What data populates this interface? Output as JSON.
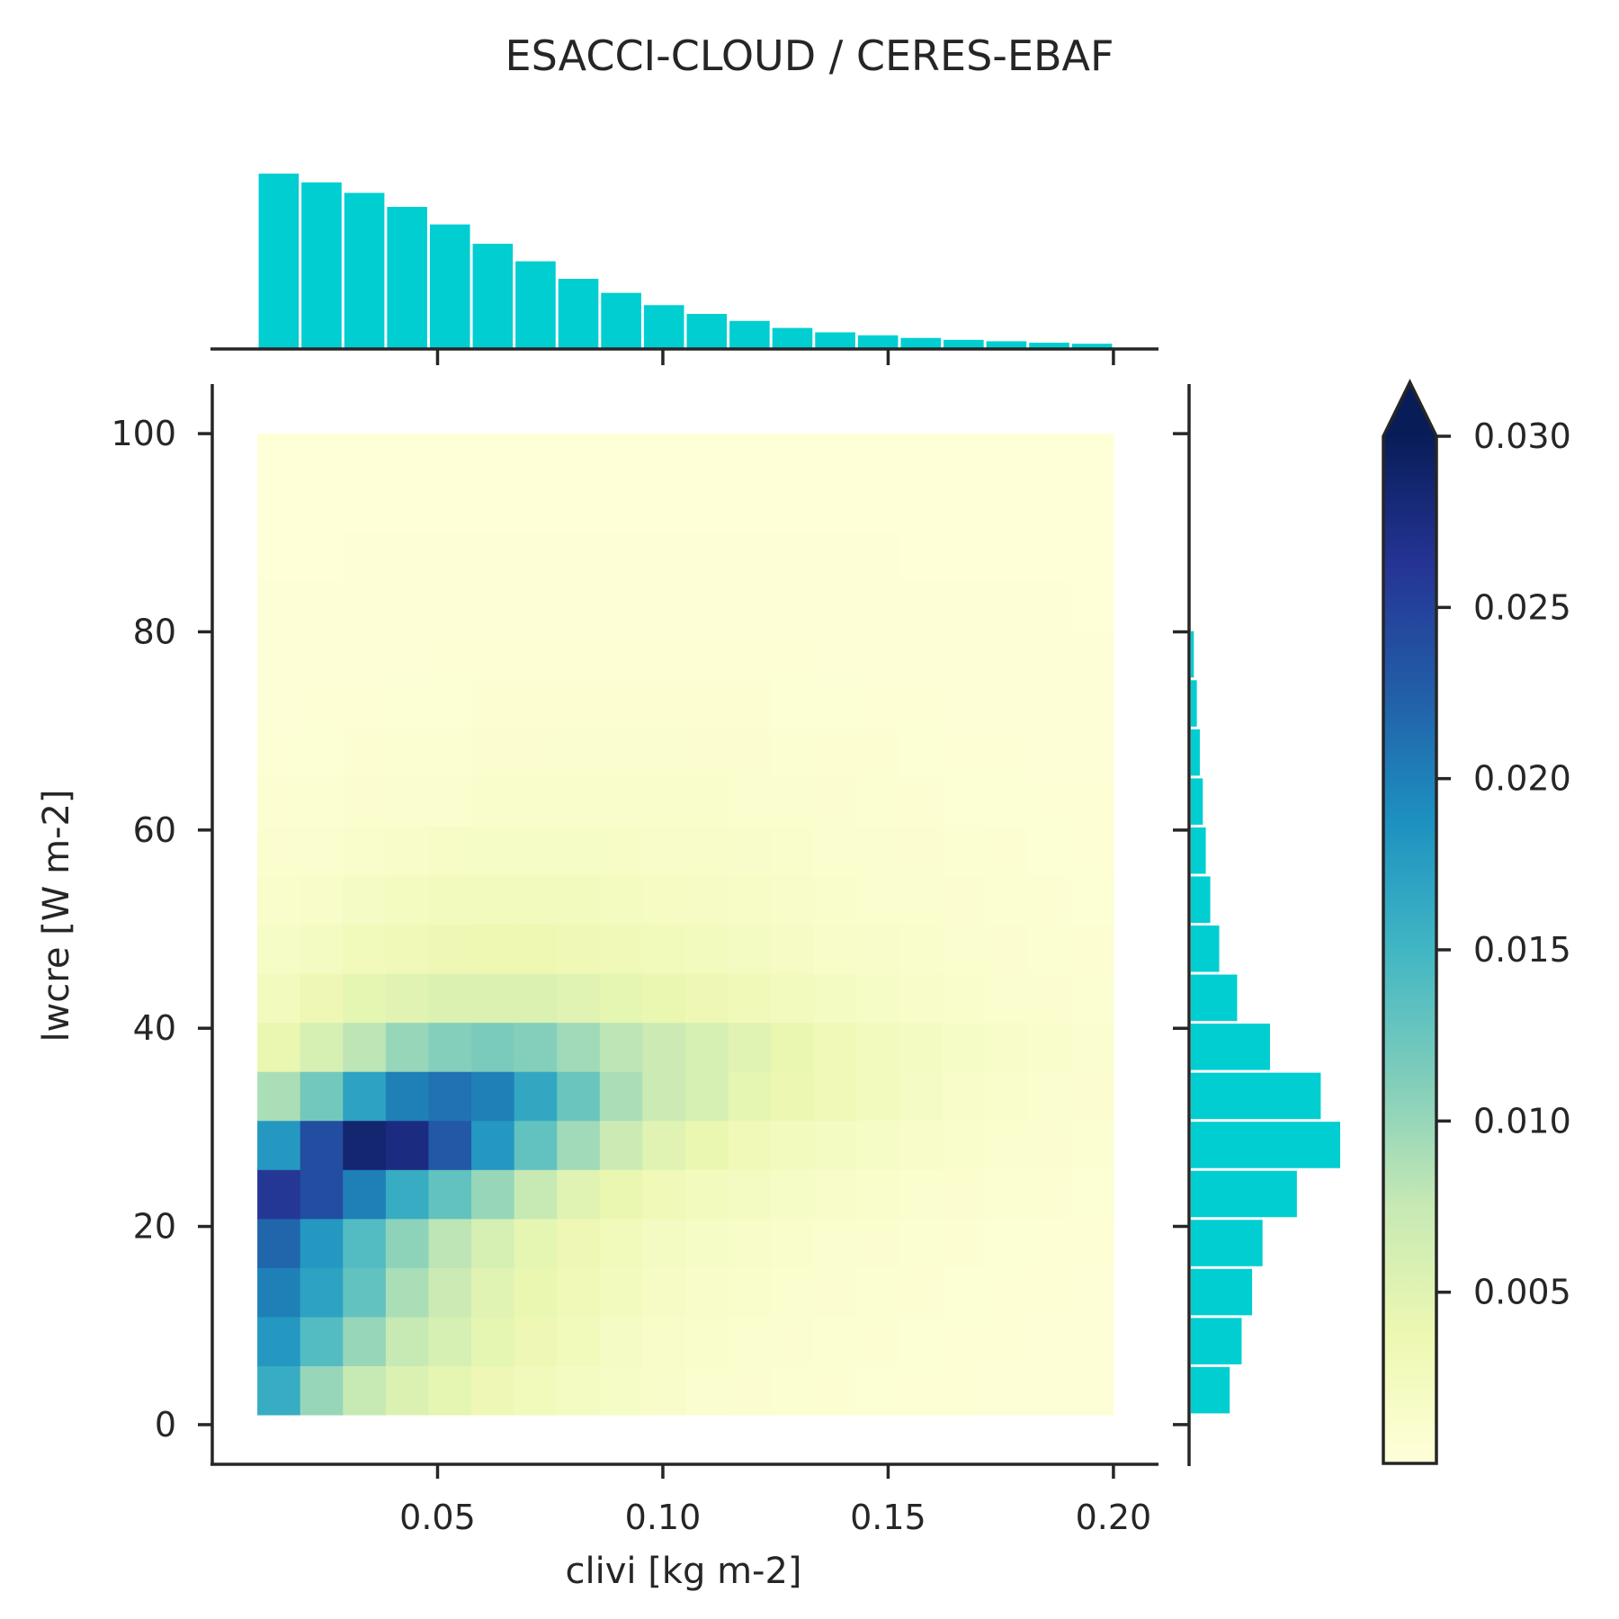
{
  "chart_data": {
    "type": "heatmap",
    "title": "ESACCI-CLOUD / CERES-EBAF",
    "xlabel": "clivi [kg m-2]",
    "ylabel": "lwcre [W m-2]",
    "xlim": [
      0,
      0.21
    ],
    "ylim": [
      -4,
      105
    ],
    "x_bin_edges": [
      0.01,
      0.0195,
      0.029,
      0.0385,
      0.048,
      0.0575,
      0.067,
      0.0765,
      0.086,
      0.0955,
      0.105,
      0.1145,
      0.124,
      0.1335,
      0.143,
      0.1525,
      0.162,
      0.1715,
      0.181,
      0.1905,
      0.2
    ],
    "y_bin_edges": [
      1,
      5.95,
      10.9,
      15.85,
      20.8,
      25.75,
      30.7,
      35.65,
      40.6,
      45.55,
      50.5,
      55.45,
      60.4,
      65.35,
      70.3,
      75.25,
      80.2,
      85.15,
      90.1,
      95.05,
      100
    ],
    "x_ticks": [
      0.05,
      0.1,
      0.15,
      0.2
    ],
    "x_tick_labels": [
      "0.05",
      "0.10",
      "0.15",
      "0.20"
    ],
    "y_ticks": [
      0,
      20,
      40,
      60,
      80,
      100
    ],
    "y_tick_labels": [
      "0",
      "20",
      "40",
      "60",
      "80",
      "100"
    ],
    "density": [
      [
        0.016,
        0.01,
        0.0075,
        0.0055,
        0.0045,
        0.0035,
        0.0028,
        0.0022,
        0.0018,
        0.0014,
        0.0011,
        0.0009,
        0.0008,
        0.0007,
        0.0006,
        0.0005,
        0.0005,
        0.0004,
        0.0004,
        0.0004
      ],
      [
        0.018,
        0.014,
        0.01,
        0.0075,
        0.006,
        0.0045,
        0.0035,
        0.0028,
        0.002,
        0.0015,
        0.0012,
        0.001,
        0.0009,
        0.0008,
        0.0007,
        0.0006,
        0.0005,
        0.0005,
        0.0004,
        0.0004
      ],
      [
        0.02,
        0.017,
        0.013,
        0.009,
        0.007,
        0.005,
        0.004,
        0.0032,
        0.0025,
        0.0019,
        0.0015,
        0.0012,
        0.001,
        0.0009,
        0.0008,
        0.0007,
        0.0006,
        0.0005,
        0.0005,
        0.0004
      ],
      [
        0.022,
        0.018,
        0.014,
        0.0105,
        0.008,
        0.006,
        0.0045,
        0.0035,
        0.0028,
        0.0022,
        0.0018,
        0.0015,
        0.0012,
        0.001,
        0.0009,
        0.0008,
        0.0007,
        0.0006,
        0.0005,
        0.0005
      ],
      [
        0.026,
        0.024,
        0.02,
        0.016,
        0.013,
        0.01,
        0.0075,
        0.005,
        0.004,
        0.0032,
        0.0026,
        0.0022,
        0.0018,
        0.0015,
        0.0013,
        0.0011,
        0.0009,
        0.0008,
        0.0007,
        0.0006
      ],
      [
        0.018,
        0.024,
        0.0285,
        0.0275,
        0.023,
        0.018,
        0.013,
        0.0095,
        0.007,
        0.005,
        0.004,
        0.0032,
        0.0026,
        0.0022,
        0.0018,
        0.0015,
        0.0012,
        0.001,
        0.0009,
        0.0008
      ],
      [
        0.009,
        0.012,
        0.017,
        0.02,
        0.021,
        0.02,
        0.0165,
        0.0125,
        0.009,
        0.007,
        0.006,
        0.0045,
        0.0038,
        0.0032,
        0.0026,
        0.002,
        0.0016,
        0.0013,
        0.0011,
        0.0009
      ],
      [
        0.004,
        0.006,
        0.008,
        0.01,
        0.011,
        0.0115,
        0.011,
        0.0095,
        0.008,
        0.007,
        0.006,
        0.005,
        0.004,
        0.0032,
        0.0026,
        0.0022,
        0.0018,
        0.0015,
        0.0012,
        0.001
      ],
      [
        0.0025,
        0.0035,
        0.0045,
        0.005,
        0.0055,
        0.0055,
        0.0055,
        0.005,
        0.0045,
        0.004,
        0.0035,
        0.003,
        0.0025,
        0.0022,
        0.0018,
        0.0015,
        0.0013,
        0.0011,
        0.0009,
        0.0008
      ],
      [
        0.0018,
        0.0022,
        0.0028,
        0.0032,
        0.0035,
        0.0036,
        0.0036,
        0.0034,
        0.0031,
        0.0028,
        0.0025,
        0.0022,
        0.0019,
        0.0016,
        0.0014,
        0.0012,
        0.001,
        0.0009,
        0.0008,
        0.0007
      ],
      [
        0.0012,
        0.0016,
        0.002,
        0.0023,
        0.0025,
        0.0026,
        0.0026,
        0.0025,
        0.0023,
        0.0021,
        0.0019,
        0.0017,
        0.0015,
        0.0013,
        0.0011,
        0.001,
        0.0009,
        0.0008,
        0.0007,
        0.0006
      ],
      [
        0.0009,
        0.0011,
        0.0013,
        0.0015,
        0.0017,
        0.0018,
        0.0018,
        0.0018,
        0.0017,
        0.0016,
        0.0015,
        0.0014,
        0.0012,
        0.0011,
        0.001,
        0.0009,
        0.0008,
        0.0007,
        0.0006,
        0.0005
      ],
      [
        0.0007,
        0.0008,
        0.0009,
        0.001,
        0.0011,
        0.0012,
        0.0013,
        0.0013,
        0.0013,
        0.0012,
        0.0012,
        0.0011,
        0.001,
        0.0009,
        0.0008,
        0.0007,
        0.0006,
        0.0006,
        0.0005,
        0.0005
      ],
      [
        0.0005,
        0.0006,
        0.0007,
        0.0008,
        0.0008,
        0.0009,
        0.0009,
        0.001,
        0.001,
        0.001,
        0.0009,
        0.0009,
        0.0008,
        0.0007,
        0.0007,
        0.0006,
        0.0005,
        0.0005,
        0.0004,
        0.0004
      ],
      [
        0.0004,
        0.0005,
        0.0005,
        0.0006,
        0.0006,
        0.0007,
        0.0007,
        0.0007,
        0.0007,
        0.0007,
        0.0007,
        0.0007,
        0.0006,
        0.0006,
        0.0005,
        0.0005,
        0.0004,
        0.0004,
        0.0004,
        0.0003
      ],
      [
        0.0003,
        0.0004,
        0.0004,
        0.0004,
        0.0005,
        0.0005,
        0.0005,
        0.0005,
        0.0005,
        0.0005,
        0.0005,
        0.0005,
        0.0005,
        0.0004,
        0.0004,
        0.0004,
        0.0003,
        0.0003,
        0.0003,
        0.0003
      ],
      [
        0.0003,
        0.0003,
        0.0003,
        0.0003,
        0.0004,
        0.0004,
        0.0004,
        0.0004,
        0.0004,
        0.0004,
        0.0004,
        0.0004,
        0.0004,
        0.0003,
        0.0003,
        0.0003,
        0.0003,
        0.0003,
        0.0003,
        0.0002
      ],
      [
        0.0002,
        0.0002,
        0.0003,
        0.0003,
        0.0003,
        0.0003,
        0.0003,
        0.0003,
        0.0003,
        0.0003,
        0.0003,
        0.0003,
        0.0003,
        0.0003,
        0.0003,
        0.0002,
        0.0002,
        0.0002,
        0.0002,
        0.0002
      ],
      [
        0.0002,
        0.0002,
        0.0002,
        0.0002,
        0.0002,
        0.0002,
        0.0002,
        0.0002,
        0.0002,
        0.0002,
        0.0002,
        0.0002,
        0.0002,
        0.0002,
        0.0002,
        0.0002,
        0.0002,
        0.0002,
        0.0002,
        0.0002
      ],
      [
        0.0002,
        0.0002,
        0.0002,
        0.0002,
        0.0002,
        0.0002,
        0.0002,
        0.0002,
        0.0002,
        0.0002,
        0.0002,
        0.0002,
        0.0002,
        0.0002,
        0.0002,
        0.0002,
        0.0002,
        0.0002,
        0.0002,
        0.0002
      ]
    ],
    "x_marginal": [
      1.0,
      0.95,
      0.89,
      0.81,
      0.71,
      0.6,
      0.5,
      0.4,
      0.32,
      0.25,
      0.2,
      0.16,
      0.12,
      0.095,
      0.078,
      0.063,
      0.052,
      0.044,
      0.036,
      0.03
    ],
    "y_marginal": [
      0.26,
      0.34,
      0.41,
      0.48,
      0.71,
      1.0,
      0.87,
      0.53,
      0.31,
      0.19,
      0.13,
      0.1,
      0.08,
      0.06,
      0.04,
      0.02,
      0,
      0,
      0,
      0
    ],
    "marginal_color": "#00ced1",
    "colormap": "YlGnBu",
    "colormap_stops": [
      "#ffffd9",
      "#edf8b1",
      "#c7e9b4",
      "#7fcdbb",
      "#41b6c4",
      "#1d91c0",
      "#225ea8",
      "#253494",
      "#081d58"
    ],
    "colorbar": {
      "range": [
        0,
        0.03
      ],
      "extend": "max",
      "ticks": [
        0.005,
        0.01,
        0.015,
        0.02,
        0.025,
        0.03
      ],
      "tick_labels": [
        "0.005",
        "0.010",
        "0.015",
        "0.020",
        "0.025",
        "0.030"
      ]
    },
    "grid": false
  }
}
